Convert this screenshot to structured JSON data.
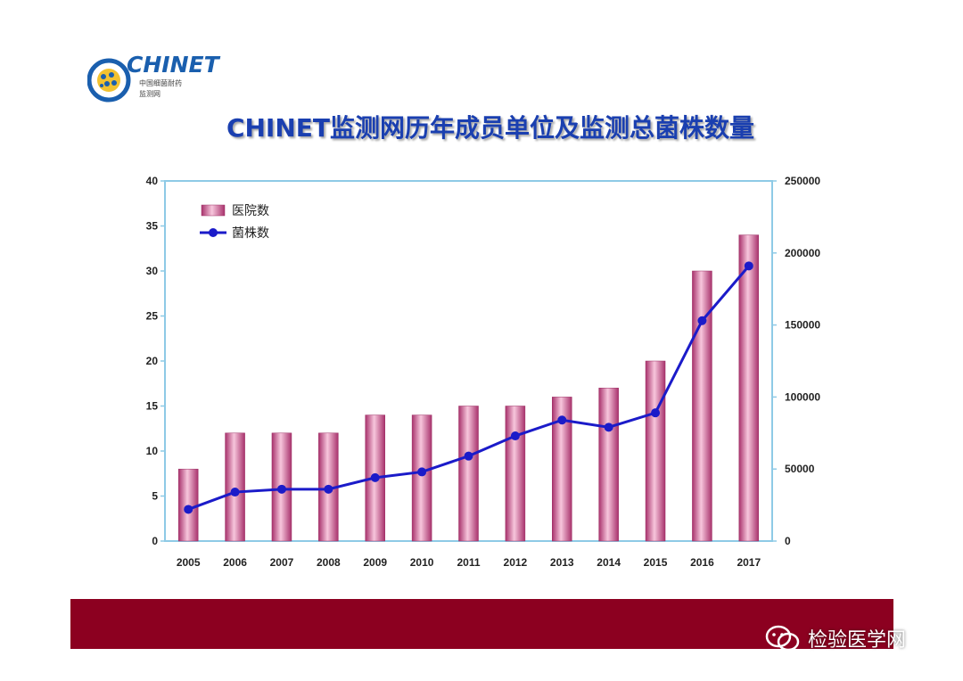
{
  "logo": {
    "brand": "CHINET",
    "sub1": "中国细菌耐药",
    "sub2": "监测网"
  },
  "title": "CHINET监测网历年成员单位及监测总菌株数量",
  "watermark": "检验医学网",
  "colors": {
    "bar": "#e090b8",
    "line": "#1b1bc9",
    "footer": "#8c0020",
    "axis": "#8ecae6",
    "title": "#1a3fb0"
  },
  "chart_data": {
    "type": "bar",
    "categories": [
      "2005",
      "2006",
      "2007",
      "2008",
      "2009",
      "2010",
      "2011",
      "2012",
      "2013",
      "2014",
      "2015",
      "2016",
      "2017"
    ],
    "series": [
      {
        "name": "医院数",
        "type": "bar",
        "axis": "left",
        "values": [
          8,
          12,
          12,
          12,
          14,
          14,
          15,
          15,
          16,
          17,
          20,
          30,
          34
        ]
      },
      {
        "name": "菌株数",
        "type": "line",
        "axis": "right",
        "values": [
          22000,
          34000,
          36000,
          36000,
          44000,
          48000,
          59000,
          73000,
          84000,
          79000,
          89000,
          153000,
          191000
        ]
      }
    ],
    "ylim_left": [
      0,
      40
    ],
    "yticks_left": [
      "0",
      "5",
      "10",
      "15",
      "20",
      "25",
      "30",
      "35",
      "40"
    ],
    "ylim_right": [
      0,
      250000
    ],
    "yticks_right": [
      "0",
      "50000",
      "100000",
      "150000",
      "200000",
      "250000"
    ],
    "legend": "top-left"
  }
}
